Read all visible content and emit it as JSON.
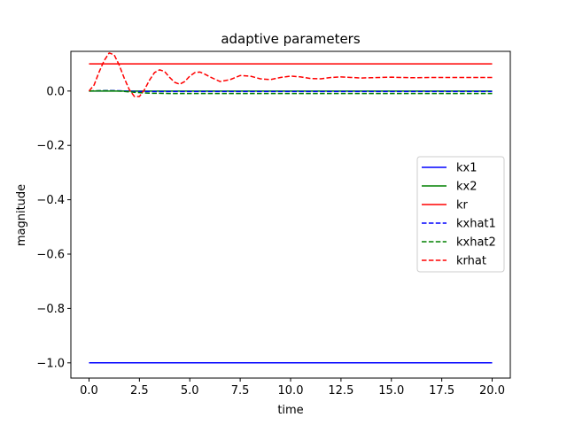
{
  "chart_data": {
    "type": "line",
    "title": "adaptive parameters",
    "xlabel": "time",
    "ylabel": "magnitude",
    "xlim": [
      -0.9,
      20.9
    ],
    "ylim": [
      -1.056,
      0.146
    ],
    "xticks": [
      0.0,
      2.5,
      5.0,
      7.5,
      10.0,
      12.5,
      15.0,
      17.5,
      20.0
    ],
    "xtick_labels": [
      "0.0",
      "2.5",
      "5.0",
      "7.5",
      "10.0",
      "12.5",
      "15.0",
      "17.5",
      "20.0"
    ],
    "yticks": [
      0.0,
      -0.2,
      -0.4,
      -0.6,
      -0.8,
      -1.0
    ],
    "ytick_labels": [
      "0.0",
      "−0.2",
      "−0.4",
      "−0.6",
      "−0.8",
      "−1.0"
    ],
    "grid": false,
    "legend_position": "center-right",
    "series": [
      {
        "name": "kx1",
        "color": "#0000ff",
        "style": "solid",
        "x": [
          0,
          20
        ],
        "y": [
          -1.0,
          -1.0
        ]
      },
      {
        "name": "kx2",
        "color": "#008000",
        "style": "solid",
        "x": [
          0,
          20
        ],
        "y": [
          0.0,
          0.0
        ]
      },
      {
        "name": "kr",
        "color": "#ff0000",
        "style": "solid",
        "x": [
          0,
          20
        ],
        "y": [
          0.1,
          0.1
        ]
      },
      {
        "name": "kxhat1",
        "color": "#0000ff",
        "style": "dashed",
        "x": [
          0,
          0.5,
          1.0,
          1.5,
          2.0,
          2.5,
          3.0,
          4.0,
          5.0,
          20.0
        ],
        "y": [
          0.0,
          0.001,
          0.002,
          0.001,
          -0.001,
          -0.002,
          -0.002,
          -0.002,
          -0.002,
          -0.002
        ]
      },
      {
        "name": "kxhat2",
        "color": "#008000",
        "style": "dashed",
        "x": [
          0,
          0.5,
          1.0,
          1.5,
          2.0,
          2.5,
          3.0,
          4.0,
          5.0,
          20.0
        ],
        "y": [
          0.0,
          0.001,
          0.001,
          0.0,
          -0.003,
          -0.006,
          -0.008,
          -0.009,
          -0.009,
          -0.009
        ]
      },
      {
        "name": "krhat",
        "color": "#ff0000",
        "style": "dashed",
        "x": [
          0,
          0.25,
          0.5,
          0.75,
          1.0,
          1.25,
          1.5,
          1.75,
          2.0,
          2.25,
          2.5,
          2.75,
          3.0,
          3.25,
          3.5,
          3.75,
          4.0,
          4.25,
          4.5,
          4.75,
          5.0,
          5.25,
          5.5,
          5.75,
          6.0,
          6.5,
          7.0,
          7.5,
          8.0,
          8.5,
          9.0,
          9.5,
          10.0,
          10.5,
          11.0,
          11.5,
          12.0,
          12.5,
          13.0,
          13.5,
          14.0,
          14.5,
          15.0,
          15.5,
          16.0,
          17.0,
          18.0,
          19.0,
          20.0
        ],
        "y": [
          0.0,
          0.022,
          0.07,
          0.112,
          0.14,
          0.133,
          0.095,
          0.047,
          0.005,
          -0.02,
          -0.02,
          0.005,
          0.04,
          0.068,
          0.078,
          0.072,
          0.05,
          0.032,
          0.025,
          0.035,
          0.055,
          0.068,
          0.07,
          0.062,
          0.052,
          0.035,
          0.042,
          0.057,
          0.055,
          0.045,
          0.042,
          0.05,
          0.055,
          0.052,
          0.046,
          0.045,
          0.05,
          0.052,
          0.05,
          0.048,
          0.049,
          0.05,
          0.051,
          0.05,
          0.049,
          0.05,
          0.05,
          0.05,
          0.05
        ]
      }
    ]
  }
}
